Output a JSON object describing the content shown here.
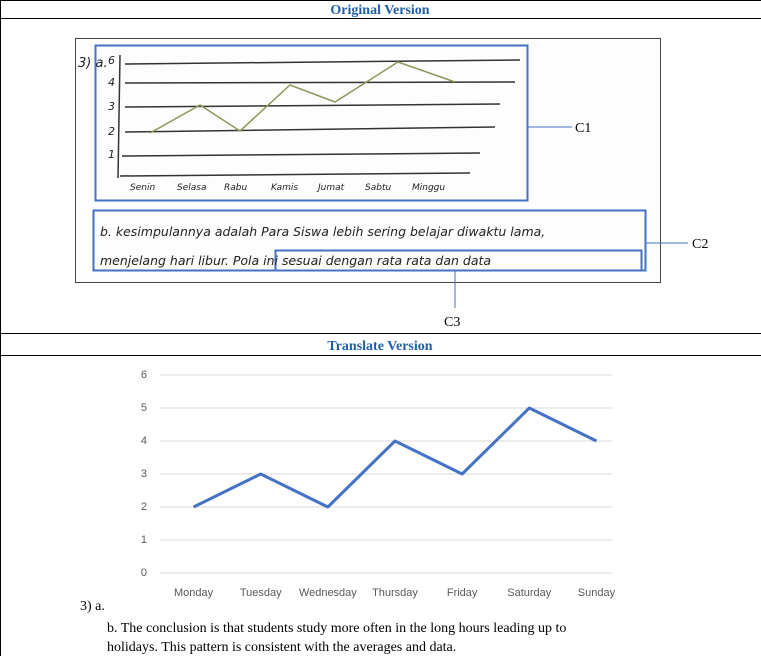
{
  "original": {
    "header": "Original Version",
    "labels": [
      "C1",
      "C2",
      "C3"
    ],
    "sketch": {
      "item": "3) a.",
      "y_labels": [
        "6",
        "4",
        "3",
        "2",
        "1"
      ],
      "x_labels": [
        "Senin",
        "Selasa",
        "Rabu",
        "Kamis",
        "Jumat",
        "Sabtu",
        "Minggu"
      ],
      "lines": [
        "b. kesimpulannya adalah Para Siswa lebih sering belajar diwaktu lama,",
        "menjelang hari libur. Pola ini sesuai dengan rata rata dan data"
      ]
    }
  },
  "translated": {
    "header": "Translate Version",
    "chart_data": {
      "type": "line",
      "categories": [
        "Monday",
        "Tuesday",
        "Wednesday",
        "Thursday",
        "Friday",
        "Saturday",
        "Sunday"
      ],
      "values": [
        2,
        3,
        2,
        4,
        3,
        5,
        4
      ],
      "color": "#4472c4",
      "ylim": [
        0,
        6
      ],
      "yticks": [
        0,
        1,
        2,
        3,
        4,
        5,
        6
      ],
      "grid": true
    },
    "item": "3)  a.",
    "text_lines": [
      "b. The conclusion is that students study more often in the long hours leading up to",
      "holidays. This pattern is consistent with the averages and data."
    ]
  }
}
